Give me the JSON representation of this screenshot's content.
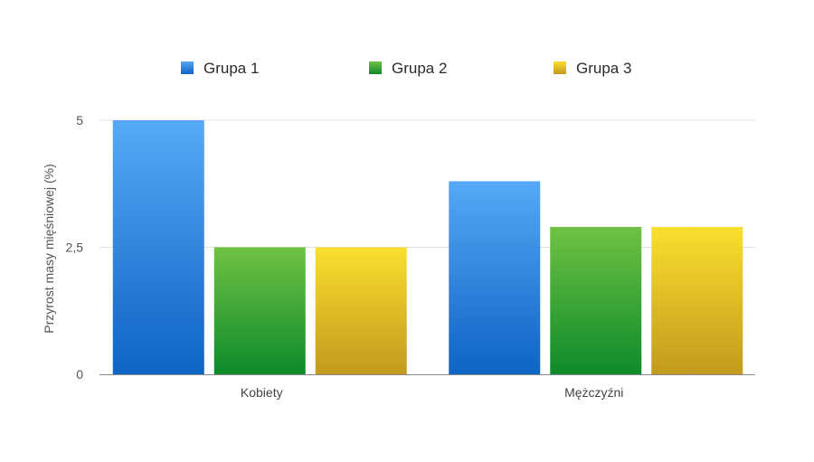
{
  "chart_data": {
    "type": "bar",
    "categories": [
      "Kobiety",
      "Mężczyźni"
    ],
    "series": [
      {
        "name": "Grupa 1",
        "values": [
          5.0,
          3.8
        ],
        "color_top": "#55A9F7",
        "color_bottom": "#0F63C4"
      },
      {
        "name": "Grupa 2",
        "values": [
          2.5,
          2.9
        ],
        "color_top": "#6FC243",
        "color_bottom": "#0E8A2A"
      },
      {
        "name": "Grupa 3",
        "values": [
          2.5,
          2.9
        ],
        "color_top": "#FADF2E",
        "color_bottom": "#C29A1E"
      }
    ],
    "ylabel": "Przyrost masy mięśniowej (%)",
    "xlabel": "",
    "ylim": [
      0,
      5
    ],
    "yticks": [
      0,
      2.5,
      5
    ],
    "ytick_labels": [
      "0",
      "2,5",
      "5"
    ],
    "grid": true,
    "legend_position": "top"
  }
}
